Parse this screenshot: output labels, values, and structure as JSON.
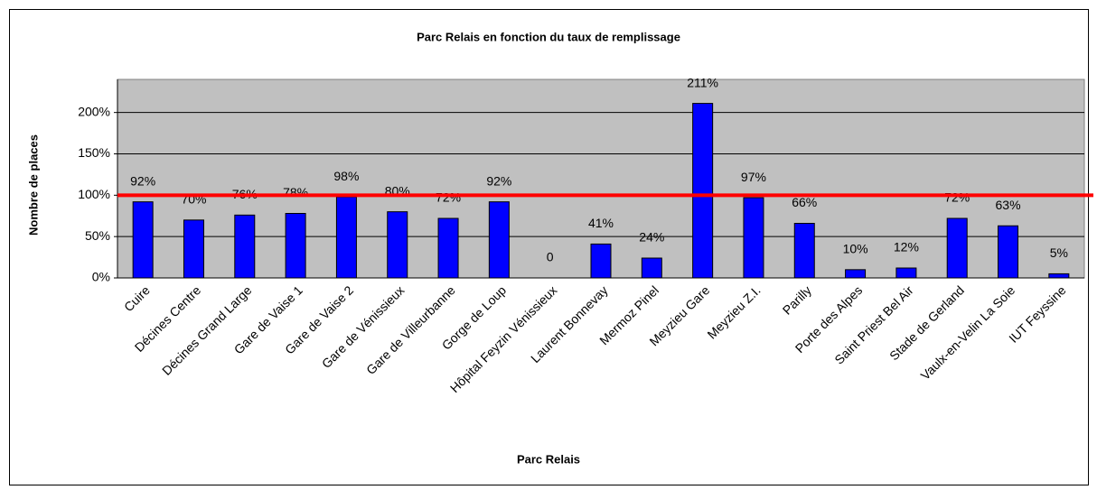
{
  "chart_data": {
    "type": "bar",
    "title": "Parc Relais en fonction du taux de remplissage",
    "x_label": "Parc Relais",
    "y_label": "Nombre de places",
    "categories": [
      "Cuire",
      "Décines Centre",
      "Décines Grand Large",
      "Gare de Vaise 1",
      "Gare de Vaise 2",
      "Gare de Vénissieux",
      "Gare de Villeurbanne",
      "Gorge de Loup",
      "Hôpital Feyzin Vénissieux",
      "Laurent Bonnevay",
      "Mermoz Pinel",
      "Meyzieu Gare",
      "Meyzieu Z.I.",
      "Parilly",
      "Porte des Alpes",
      "Saint Priest Bel Air",
      "Stade de Gerland",
      "Vaulx-en-Velin La Soie",
      "IUT Feyssine"
    ],
    "values": [
      92,
      70,
      76,
      78,
      98,
      80,
      72,
      92,
      0,
      41,
      24,
      211,
      97,
      66,
      10,
      12,
      72,
      63,
      5
    ],
    "value_labels": [
      "92%",
      "70%",
      "76%",
      "78%",
      "98%",
      "80%",
      "72%",
      "92%",
      "0",
      "41%",
      "24%",
      "211%",
      "97%",
      "66%",
      "10%",
      "12%",
      "72%",
      "63%",
      "5%"
    ],
    "color": "#0000ff",
    "ylim": [
      0,
      240
    ],
    "yticks": [
      {
        "value": 0,
        "label": "0%"
      },
      {
        "value": 50,
        "label": "50%"
      },
      {
        "value": 100,
        "label": "100%"
      },
      {
        "value": 150,
        "label": "150%"
      },
      {
        "value": 200,
        "label": "200%"
      }
    ],
    "grid": true,
    "reference_line": {
      "value": 100,
      "color": "#ff0000"
    }
  }
}
